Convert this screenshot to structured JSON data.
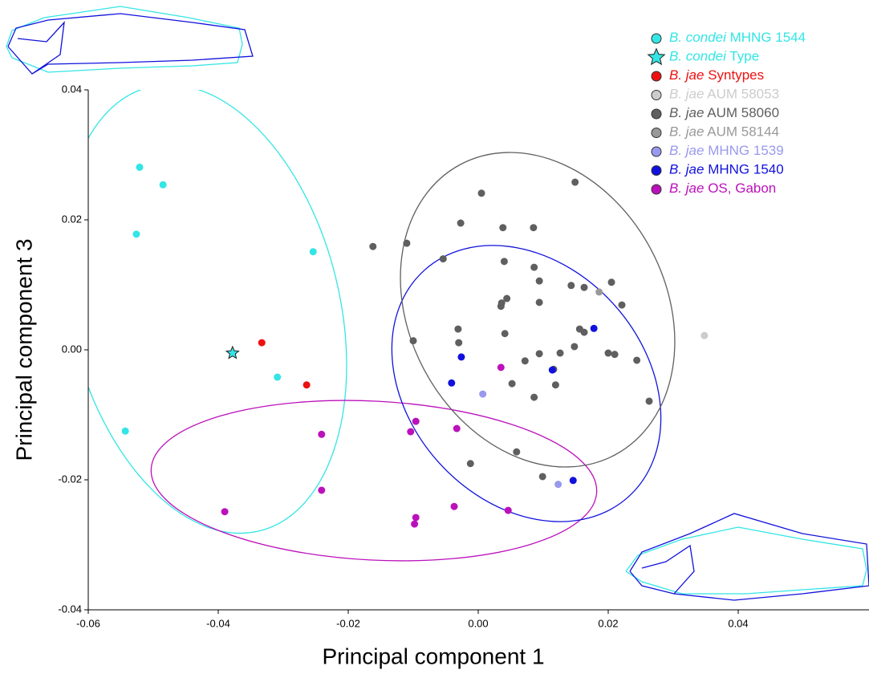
{
  "chart_data": {
    "type": "scatter",
    "xlabel": "Principal component 1",
    "ylabel": "Principal component 3",
    "xlim": [
      -0.06,
      0.06
    ],
    "ylim": [
      -0.04,
      0.04
    ],
    "xticks": [
      -0.06,
      -0.04,
      -0.02,
      {
        "value": 0,
        "label": "0.00"
      },
      0.02,
      0.04
    ],
    "yticks": [
      -0.04,
      -0.02,
      {
        "value": 0,
        "label": "0.00"
      },
      0.02,
      0.04
    ],
    "series": [
      {
        "name": "B. condei MHNG 1544",
        "color": "#33e5e5",
        "marker": "circle",
        "x": [
          -0.0521,
          -0.0485,
          -0.0526,
          -0.0254,
          -0.0309,
          -0.0543
        ],
        "y": [
          0.0281,
          0.0254,
          0.0178,
          0.0151,
          -0.0042,
          -0.0125
        ]
      },
      {
        "name": "B. condei Type",
        "color": "#33e5e5",
        "marker": "star",
        "x": [
          -0.0378
        ],
        "y": [
          -0.0005
        ]
      },
      {
        "name": "B. jae Syntypes",
        "color": "#ee1111",
        "marker": "circle",
        "x": [
          -0.0333,
          -0.0264
        ],
        "y": [
          0.0011,
          -0.0054
        ]
      },
      {
        "name": "B. jae AUM 58053",
        "color": "#cccccc",
        "marker": "circle",
        "x": [
          0.0348
        ],
        "y": [
          0.0022
        ]
      },
      {
        "name": "B. jae AUM 58060",
        "color": "#5f5f5f",
        "marker": "circle",
        "x": [
          -0.0162,
          -0.011,
          0.0005,
          0.0149,
          -0.0027,
          0.0038,
          0.0085,
          -0.0054,
          0.004,
          0.0086,
          0.0094,
          0.0044,
          0.0036,
          0.0035,
          0.0094,
          0.0143,
          0.0163,
          0.0205,
          0.0221,
          -0.0031,
          0.0041,
          0.0156,
          0.0163,
          -0.01,
          -0.003,
          0.0148,
          0.02,
          0.021,
          0.0244,
          0.0094,
          0.0126,
          0.0072,
          0.0116,
          0.0052,
          0.0119,
          0.0086,
          0.0263,
          0.0059,
          -0.0012,
          0.0099
        ],
        "y": [
          0.0159,
          0.0164,
          0.0241,
          0.0258,
          0.0195,
          0.0188,
          0.0188,
          0.014,
          0.0136,
          0.0127,
          0.0106,
          0.0079,
          0.0072,
          0.0067,
          0.0073,
          0.0099,
          0.0096,
          0.0104,
          0.0069,
          0.0032,
          0.0025,
          0.0032,
          0.0027,
          0.0014,
          0.0011,
          0.0005,
          -0.0005,
          -0.0007,
          -0.0016,
          -0.0006,
          -0.0005,
          -0.0017,
          -0.003,
          -0.0052,
          -0.0054,
          -0.0073,
          -0.0079,
          -0.0157,
          -0.0175,
          -0.0195
        ]
      },
      {
        "name": "B. jae AUM 58144",
        "color": "#999999",
        "marker": "circle",
        "x": [
          0.0186
        ],
        "y": [
          0.0089
        ]
      },
      {
        "name": "B. jae MHNG 1539",
        "color": "#9999ee",
        "marker": "circle",
        "x": [
          0.0007,
          0.0123
        ],
        "y": [
          -0.0068,
          -0.0207
        ]
      },
      {
        "name": "B. jae MHNG 1540",
        "color": "#1111dd",
        "marker": "circle",
        "x": [
          -0.0026,
          0.0178,
          0.0114,
          -0.0041,
          0.0146
        ],
        "y": [
          -0.0011,
          0.0033,
          -0.0031,
          -0.0051,
          -0.0201
        ]
      },
      {
        "name": "B. jae OS, Gabon",
        "color": "#bb11bb",
        "marker": "circle",
        "x": [
          0.0035,
          -0.0096,
          -0.0104,
          -0.0033,
          -0.0241,
          -0.0241,
          -0.039,
          -0.0037,
          -0.0096,
          -0.0098,
          0.0046
        ],
        "y": [
          -0.0027,
          -0.011,
          -0.0126,
          -0.0121,
          -0.013,
          -0.0216,
          -0.0249,
          -0.0241,
          -0.0258,
          -0.0268,
          -0.0247
        ]
      }
    ]
  }
}
